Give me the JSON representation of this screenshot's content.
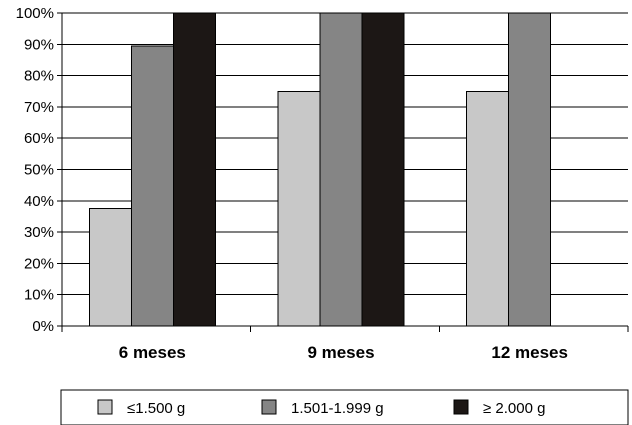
{
  "chart_data": {
    "type": "bar",
    "categories": [
      "6 meses",
      "9 meses",
      "12 meses"
    ],
    "series": [
      {
        "name": "≤1.500 g",
        "values": [
          37.5,
          75,
          75
        ],
        "color": "#c8c8c8"
      },
      {
        "name": "1.501-1.999 g",
        "values": [
          89.5,
          100,
          100
        ],
        "color": "#858585"
      },
      {
        "name": "≥ 2.000 g",
        "values": [
          100,
          100,
          null
        ],
        "color": "#1c1715"
      }
    ],
    "ylim": [
      0,
      100
    ],
    "yticks": [
      "0%",
      "10%",
      "20%",
      "30%",
      "40%",
      "50%",
      "60%",
      "70%",
      "80%",
      "90%",
      "100%"
    ],
    "grid": true,
    "legend_position": "bottom",
    "title": "",
    "xlabel": "",
    "ylabel": ""
  }
}
